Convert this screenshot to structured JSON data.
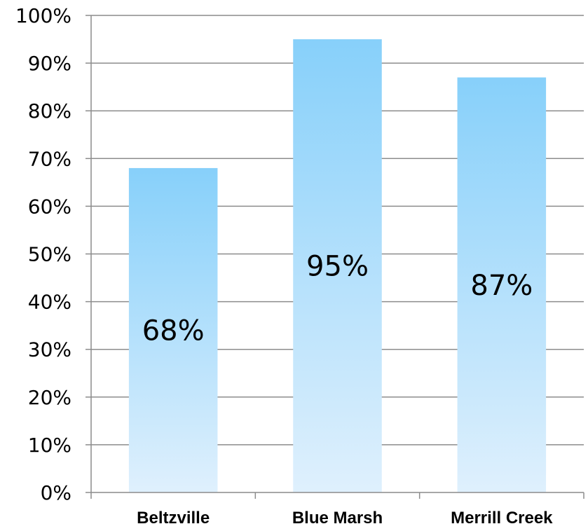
{
  "chart_data": {
    "type": "bar",
    "categories": [
      "Beltzville",
      "Blue Marsh",
      "Merrill Creek"
    ],
    "values": [
      68,
      95,
      87
    ],
    "data_labels": [
      "68%",
      "95%",
      "87%"
    ],
    "title": "",
    "xlabel": "",
    "ylabel": "",
    "ylim": [
      0,
      100
    ],
    "y_ticks": [
      0,
      10,
      20,
      30,
      40,
      50,
      60,
      70,
      80,
      90,
      100
    ],
    "y_tick_labels": [
      "0%",
      "10%",
      "20%",
      "30%",
      "40%",
      "50%",
      "60%",
      "70%",
      "80%",
      "90%",
      "100%"
    ],
    "grid": true,
    "legend": "none",
    "colors": {
      "bar_top": "#87d0fa",
      "bar_bottom": "#dff0fd",
      "grid": "#8c8c8c",
      "axis": "#8c8c8c"
    }
  }
}
